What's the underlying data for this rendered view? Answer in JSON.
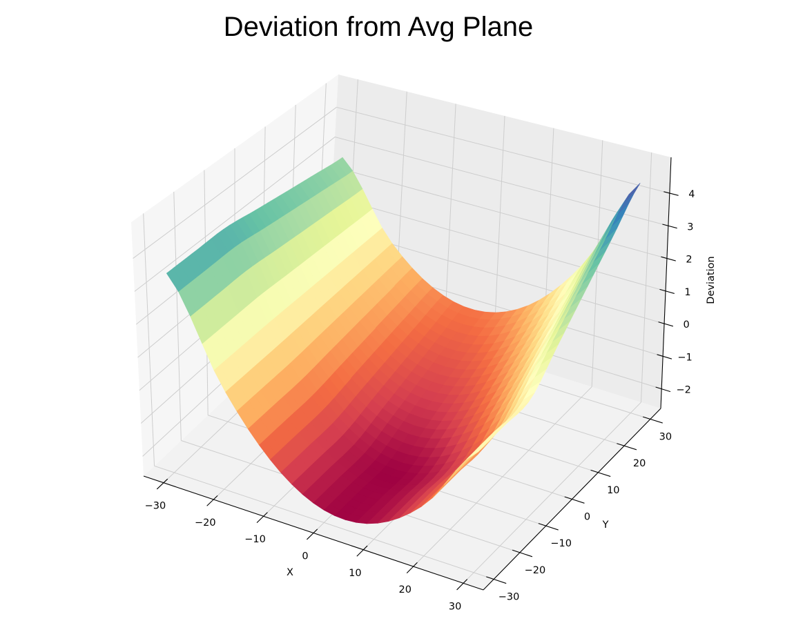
{
  "chart_data": {
    "type": "surface",
    "title": "Deviation from Avg Plane",
    "xlabel": "X",
    "ylabel": "Y",
    "zlabel": "Deviation",
    "x": [
      -30,
      -20,
      -10,
      0,
      10,
      20,
      30
    ],
    "y": [
      -30,
      -20,
      -10,
      0,
      10,
      20,
      30
    ],
    "z": [
      [
        3.48,
        0.58,
        -1.32,
        -2.22,
        -2.12,
        -1.02,
        1.08
      ],
      [
        3.48,
        0.58,
        -1.32,
        -2.22,
        -2.12,
        -1.02,
        1.08
      ],
      [
        3.48,
        0.58,
        -1.32,
        -2.22,
        -2.12,
        -1.02,
        1.08
      ],
      [
        3.31,
        0.58,
        -1.15,
        -1.88,
        -1.61,
        -0.34,
        1.93
      ],
      [
        3.14,
        0.58,
        -0.98,
        -1.54,
        -1.1,
        0.34,
        2.78
      ],
      [
        2.97,
        0.58,
        -0.81,
        -1.2,
        -0.59,
        1.02,
        3.63
      ],
      [
        2.8,
        0.58,
        -0.64,
        -0.86,
        -0.08,
        1.7,
        4.48
      ]
    ],
    "xlim": [
      -34,
      34
    ],
    "ylim": [
      -34,
      34
    ],
    "zlim": [
      -2.6,
      5.1
    ],
    "xticks": [
      -30,
      -20,
      -10,
      0,
      10,
      20,
      30
    ],
    "yticks": [
      -30,
      -20,
      -10,
      0,
      10,
      20,
      30
    ],
    "zticks": [
      -2,
      -1,
      0,
      1,
      2,
      3,
      4
    ],
    "xtick_labels": [
      "−30",
      "−20",
      "−10",
      "0",
      "10",
      "20",
      "30"
    ],
    "ytick_labels": [
      "−30",
      "−20",
      "−10",
      "0",
      "10",
      "20",
      "30"
    ],
    "ztick_labels": [
      "−2",
      "−1",
      "0",
      "1",
      "2",
      "3",
      "4"
    ],
    "colormap": "Spectral",
    "colormap_stops": [
      "#9e0142",
      "#d53e4f",
      "#f46d43",
      "#fdae61",
      "#fee08b",
      "#ffffbf",
      "#e6f598",
      "#abdda4",
      "#66c2a5",
      "#3288bd",
      "#5e4fa2"
    ],
    "grid": true,
    "pane_colors": {
      "floor": "#f2f2f2",
      "left_wall": "#f6f6f6",
      "back_wall": "#ececec",
      "grid": "#cdcdcd"
    }
  }
}
